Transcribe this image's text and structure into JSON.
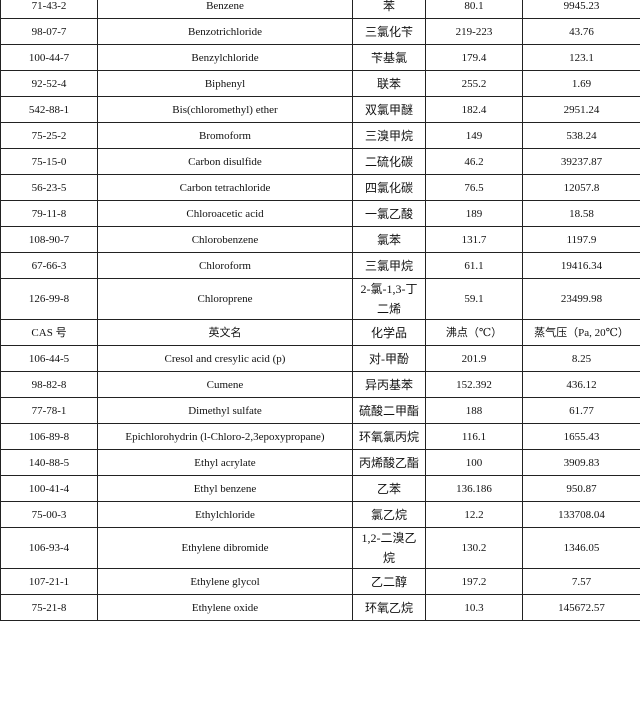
{
  "table": {
    "rows": [
      [
        "71-43-2",
        "Benzene",
        "苯",
        "80.1",
        "9945.23"
      ],
      [
        "98-07-7",
        "Benzotrichloride",
        "三氯化苄",
        "219-223",
        "43.76"
      ],
      [
        "100-44-7",
        "Benzylchloride",
        "苄基氯",
        "179.4",
        "123.1"
      ],
      [
        "92-52-4",
        "Biphenyl",
        "联苯",
        "255.2",
        "1.69"
      ],
      [
        "542-88-1",
        "Bis(chloromethyl) ether",
        "双氯甲醚",
        "182.4",
        "2951.24"
      ],
      [
        "75-25-2",
        "Bromoform",
        "三溴甲烷",
        "149",
        "538.24"
      ],
      [
        "75-15-0",
        "Carbon disulfide",
        "二硫化碳",
        "46.2",
        "39237.87"
      ],
      [
        "56-23-5",
        "Carbon tetrachloride",
        "四氯化碳",
        "76.5",
        "12057.8"
      ],
      [
        "79-11-8",
        "Chloroacetic acid",
        "一氯乙酸",
        "189",
        "18.58"
      ],
      [
        "108-90-7",
        "Chlorobenzene",
        "氯苯",
        "131.7",
        "1197.9"
      ],
      [
        "67-66-3",
        "Chloroform",
        "三氯甲烷",
        "61.1",
        "19416.34"
      ],
      [
        "126-99-8",
        "Chloroprene",
        "2-氯-1,3-丁二烯",
        "59.1",
        "23499.98"
      ],
      [
        "CAS 号",
        "英文名",
        "化学品",
        "沸点（℃）",
        "蒸气压（Pa, 20℃）"
      ],
      [
        "106-44-5",
        "Cresol and cresylic acid (p)",
        "对-甲酚",
        "201.9",
        "8.25"
      ],
      [
        "98-82-8",
        "Cumene",
        "异丙基苯",
        "152.392",
        "436.12"
      ],
      [
        "77-78-1",
        "Dimethyl sulfate",
        "硫酸二甲酯",
        "188",
        "61.77"
      ],
      [
        "106-89-8",
        "Epichlorohydrin (l-Chloro-2,3epoxypropane)",
        "环氧氯丙烷",
        "116.1",
        "1655.43"
      ],
      [
        "140-88-5",
        "Ethyl acrylate",
        "丙烯酸乙酯",
        "100",
        "3909.83"
      ],
      [
        "100-41-4",
        "Ethyl benzene",
        "乙苯",
        "136.186",
        "950.87"
      ],
      [
        "75-00-3",
        "Ethylchloride",
        "氯乙烷",
        "12.2",
        "133708.04"
      ],
      [
        "106-93-4",
        "Ethylene dibromide",
        "1,2-二溴乙烷",
        "130.2",
        "1346.05"
      ],
      [
        "107-21-1",
        "Ethylene glycol",
        "乙二醇",
        "197.2",
        "7.57"
      ],
      [
        "75-21-8",
        "Ethylene oxide",
        "环氧乙烷",
        "10.3",
        "145672.57"
      ]
    ]
  }
}
